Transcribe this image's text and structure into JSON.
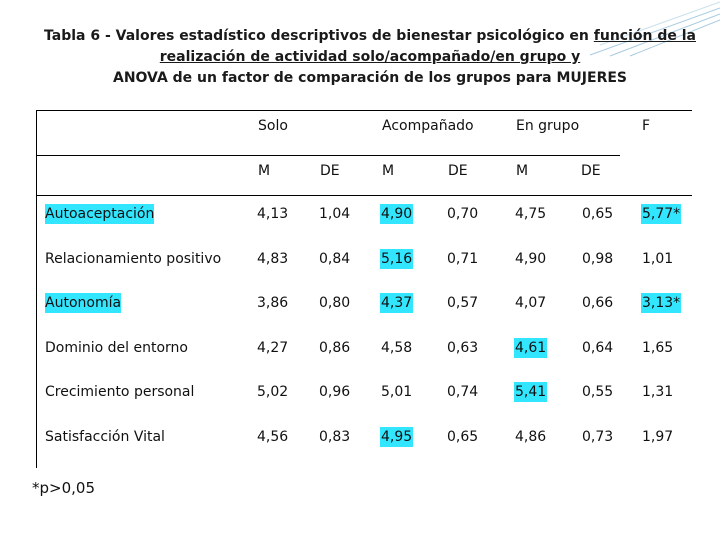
{
  "title": {
    "line1": "Tabla 6 - Valores estadístico descriptivos de bienestar psicológico en ",
    "line1_underlined": "función de la",
    "line2": "realización de actividad solo/acompañado/en grupo y",
    "line3_prefix": "ANOVA de un factor de comparación de los grupos para ",
    "line3_emphasis": "MUJERES"
  },
  "headers": {
    "solo": "Solo",
    "acompanado": "Acompañado",
    "en_grupo": "En grupo",
    "f": "F",
    "m": "M",
    "de": "DE"
  },
  "highlight_color": "#33e6ff",
  "rows": [
    {
      "label": "Autoaceptación",
      "label_hl": true,
      "values": [
        "4,13",
        "1,04",
        "4,90",
        "0,70",
        "4,75",
        "0,65",
        "5,77*"
      ],
      "hl": [
        false,
        false,
        true,
        false,
        false,
        false,
        true
      ]
    },
    {
      "label": "Relacionamiento positivo",
      "label_hl": false,
      "values": [
        "4,83",
        "0,84",
        "5,16",
        "0,71",
        "4,90",
        "0,98",
        "1,01"
      ],
      "hl": [
        false,
        false,
        true,
        false,
        false,
        false,
        false
      ]
    },
    {
      "label": "Autonomía",
      "label_hl": true,
      "values": [
        "3,86",
        "0,80",
        "4,37",
        "0,57",
        "4,07",
        "0,66",
        "3,13*"
      ],
      "hl": [
        false,
        false,
        true,
        false,
        false,
        false,
        true
      ]
    },
    {
      "label": "Dominio del entorno",
      "label_hl": false,
      "values": [
        "4,27",
        "0,86",
        "4,58",
        "0,63",
        "4,61",
        "0,64",
        "1,65"
      ],
      "hl": [
        false,
        false,
        false,
        false,
        true,
        false,
        false
      ]
    },
    {
      "label": "Crecimiento personal",
      "label_hl": false,
      "values": [
        "5,02",
        "0,96",
        "5,01",
        "0,74",
        "5,41",
        "0,55",
        "1,31"
      ],
      "hl": [
        false,
        false,
        false,
        false,
        true,
        false,
        false
      ]
    },
    {
      "label": "Satisfacción Vital",
      "label_hl": false,
      "values": [
        "4,56",
        "0,83",
        "4,95",
        "0,65",
        "4,86",
        "0,73",
        "1,97"
      ],
      "hl": [
        false,
        false,
        true,
        false,
        false,
        false,
        false
      ]
    }
  ],
  "footnote": "*p>0,05"
}
